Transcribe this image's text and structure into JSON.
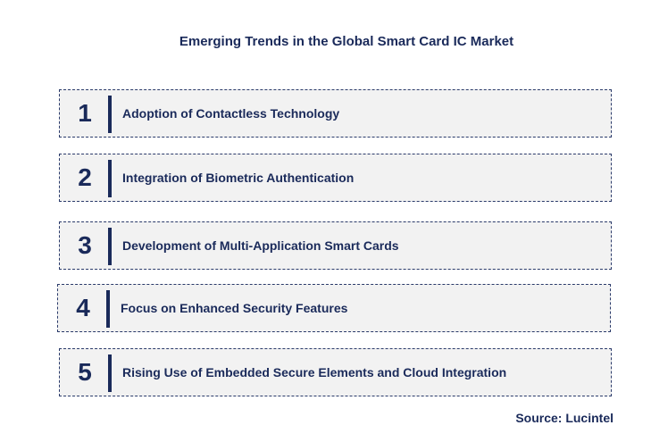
{
  "title": "Emerging Trends in the Global Smart Card IC Market",
  "trends": [
    {
      "number": "1",
      "label": "Adoption of Contactless Technology"
    },
    {
      "number": "2",
      "label": "Integration of Biometric Authentication"
    },
    {
      "number": "3",
      "label": "Development of Multi-Application Smart Cards"
    },
    {
      "number": "4",
      "label": "Focus on Enhanced Security Features"
    },
    {
      "number": "5",
      "label": "Rising Use of Embedded Secure Elements and Cloud Integration"
    }
  ],
  "source": "Source: Lucintel",
  "colors": {
    "text": "#1a2a5a",
    "box_fill": "#f2f2f2",
    "box_border": "#2a3a6a"
  }
}
